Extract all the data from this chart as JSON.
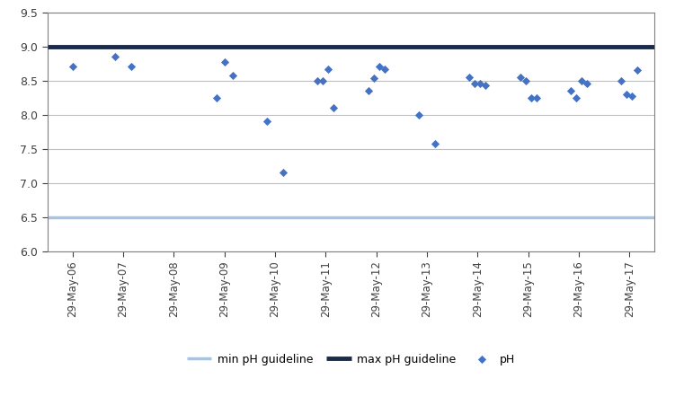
{
  "guideline_min": 6.5,
  "guideline_max": 9.0,
  "guideline_min_color": "#a8c4e0",
  "guideline_max_color": "#1a2a4a",
  "marker_color": "#4472c4",
  "ylim": [
    6.0,
    9.5
  ],
  "yticks": [
    6.0,
    6.5,
    7.0,
    7.5,
    8.0,
    8.5,
    9.0,
    9.5
  ],
  "legend_labels": [
    "min pH guideline",
    "max pH guideline",
    "pH"
  ],
  "background_color": "#ffffff",
  "grid_color": "#bfbfbf",
  "spine_color": "#808080",
  "data_points": [
    {
      "year": 2006,
      "values": [
        8.7
      ]
    },
    {
      "year": 2007,
      "values": [
        8.85,
        8.7
      ]
    },
    {
      "year": 2008,
      "values": []
    },
    {
      "year": 2009,
      "values": [
        8.25,
        8.77,
        8.57
      ]
    },
    {
      "year": 2010,
      "values": [
        7.9,
        7.15
      ]
    },
    {
      "year": 2011,
      "values": [
        8.5,
        8.5,
        8.67,
        8.1
      ]
    },
    {
      "year": 2012,
      "values": [
        8.35,
        8.54,
        8.7,
        8.67
      ]
    },
    {
      "year": 2013,
      "values": [
        8.0,
        7.57
      ]
    },
    {
      "year": 2014,
      "values": [
        8.55,
        8.45,
        8.45,
        8.43
      ]
    },
    {
      "year": 2015,
      "values": [
        8.55,
        8.5,
        8.25,
        8.25
      ]
    },
    {
      "year": 2016,
      "values": [
        8.35,
        8.25,
        8.5,
        8.45
      ]
    },
    {
      "year": 2017,
      "values": [
        8.5,
        8.3,
        8.27,
        8.65
      ]
    }
  ],
  "xtick_labels": [
    "29-May-06",
    "29-May-07",
    "29-May-08",
    "29-May-09",
    "29-May-10",
    "29-May-11",
    "29-May-12",
    "29-May-13",
    "29-May-14",
    "29-May-15",
    "29-May-16",
    "29-May-17"
  ]
}
